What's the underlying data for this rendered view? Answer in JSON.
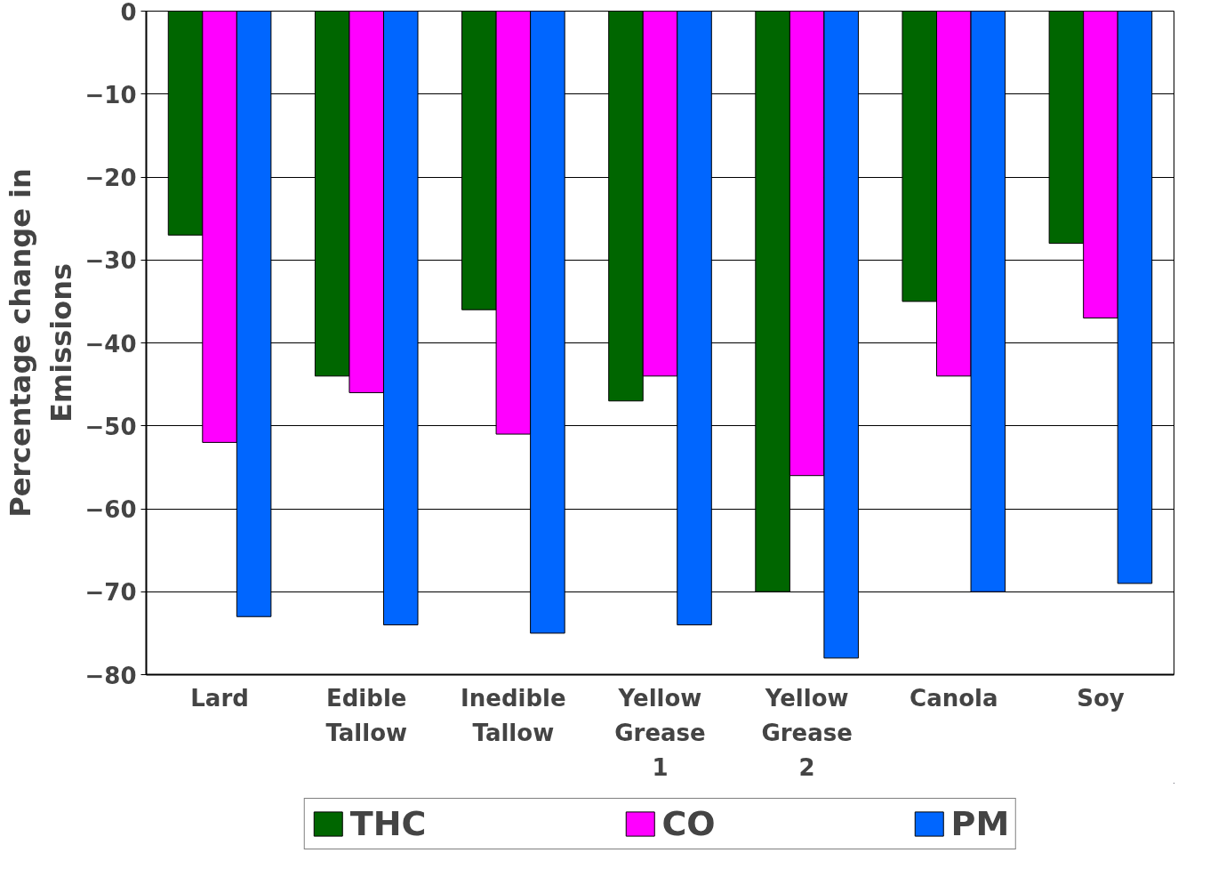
{
  "chart_data": {
    "type": "bar",
    "ylabel": "Percentage change in Emissions",
    "categories": [
      "Lard",
      "Edible Tallow",
      "Inedible Tallow",
      "Yellow Grease 1",
      "Yellow Grease 2",
      "Canola",
      "Soy"
    ],
    "series": [
      {
        "name": "THC",
        "color": "#006600",
        "values": [
          -27,
          -44,
          -36,
          -47,
          -70,
          -35,
          -28
        ]
      },
      {
        "name": "CO",
        "color": "#ff00ff",
        "values": [
          -52,
          -46,
          -51,
          -44,
          -56,
          -44,
          -37
        ]
      },
      {
        "name": "PM",
        "color": "#0066ff",
        "values": [
          -73,
          -74,
          -75,
          -74,
          -78,
          -70,
          -69
        ]
      }
    ],
    "ylim": [
      -80,
      0
    ],
    "yticks": [
      0,
      -10,
      -20,
      -30,
      -40,
      -50,
      -60,
      -70,
      -80
    ],
    "grid": "y",
    "legend": "bottom"
  }
}
